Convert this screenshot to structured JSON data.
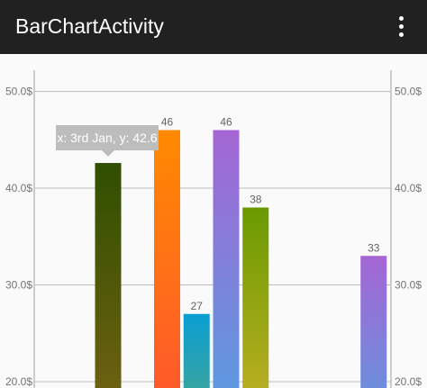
{
  "app": {
    "title": "BarChartActivity",
    "menu_icon": "more-vert-icon"
  },
  "chart_data": {
    "type": "bar",
    "ylim": [
      20,
      54.2
    ],
    "y_ticks": [
      20,
      30,
      40,
      50
    ],
    "y_tick_suffix": "$",
    "grid": "horizontal",
    "axes": [
      "left",
      "right"
    ],
    "bars": [
      {
        "x": 3,
        "value": 42.6,
        "label": "",
        "top_color": "#304f00",
        "bottom_color": "#6b6010"
      },
      {
        "x": 5,
        "value": 46,
        "label": "46",
        "top_color": "#ff8a00",
        "bottom_color": "#ff5a2a"
      },
      {
        "x": 6,
        "value": 27,
        "label": "27",
        "top_color": "#0a9ed3",
        "bottom_color": "#35a4a4"
      },
      {
        "x": 7,
        "value": 46,
        "label": "46",
        "top_color": "#a566d4",
        "bottom_color": "#5f98e0"
      },
      {
        "x": 8,
        "value": 38,
        "label": "38",
        "top_color": "#6a9a00",
        "bottom_color": "#b5ae20"
      },
      {
        "x": 12,
        "value": 33,
        "label": "33",
        "top_color": "#a566d4",
        "bottom_color": "#6f8ddd"
      }
    ],
    "highlight": {
      "text": "x: 3rd Jan, y: 42.6",
      "bar_index": 0
    },
    "colors": {
      "grid": "#bdbdbd",
      "axis": "#9e9e9e",
      "tooltip": "#bdbdbd"
    }
  }
}
